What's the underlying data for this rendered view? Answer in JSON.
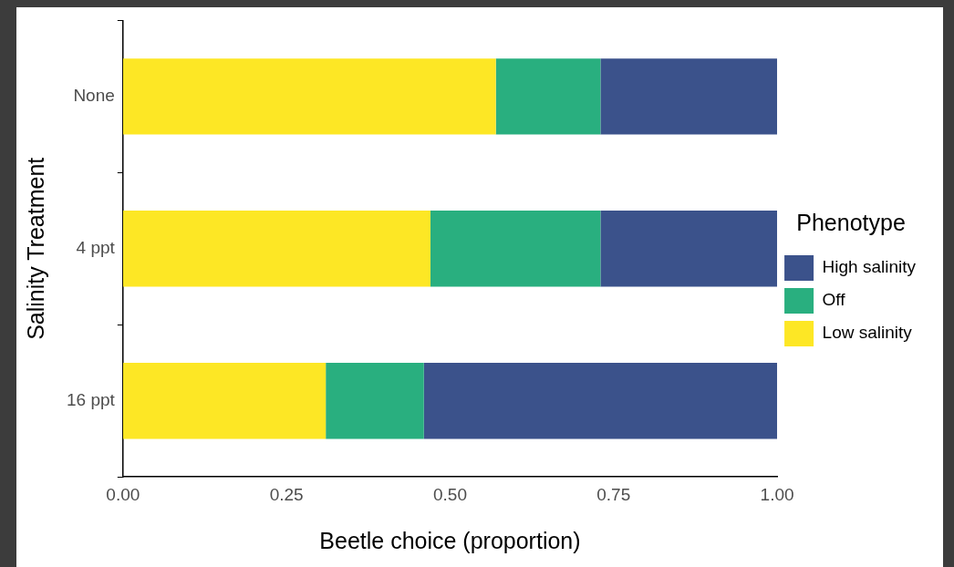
{
  "chart_data": {
    "type": "bar",
    "orientation": "horizontal",
    "stacked": true,
    "xlabel": "Beetle choice (proportion)",
    "ylabel": "Salinity Treatment",
    "legend_title": "Phenotype",
    "categories": [
      "None",
      "4 ppt",
      "16 ppt"
    ],
    "series": [
      {
        "name": "Low salinity",
        "color": "#fde725",
        "values": [
          0.57,
          0.47,
          0.31
        ]
      },
      {
        "name": "Off",
        "color": "#29af7f",
        "values": [
          0.16,
          0.26,
          0.15
        ]
      },
      {
        "name": "High salinity",
        "color": "#3b528b",
        "values": [
          0.27,
          0.27,
          0.54
        ]
      }
    ],
    "xlim": [
      0,
      1
    ],
    "xticks": [
      {
        "value": 0,
        "label": "0.00"
      },
      {
        "value": 0.25,
        "label": "0.25"
      },
      {
        "value": 0.5,
        "label": "0.50"
      },
      {
        "value": 0.75,
        "label": "0.75"
      },
      {
        "value": 1,
        "label": "1.00"
      }
    ],
    "grid": false,
    "legend": "right"
  }
}
